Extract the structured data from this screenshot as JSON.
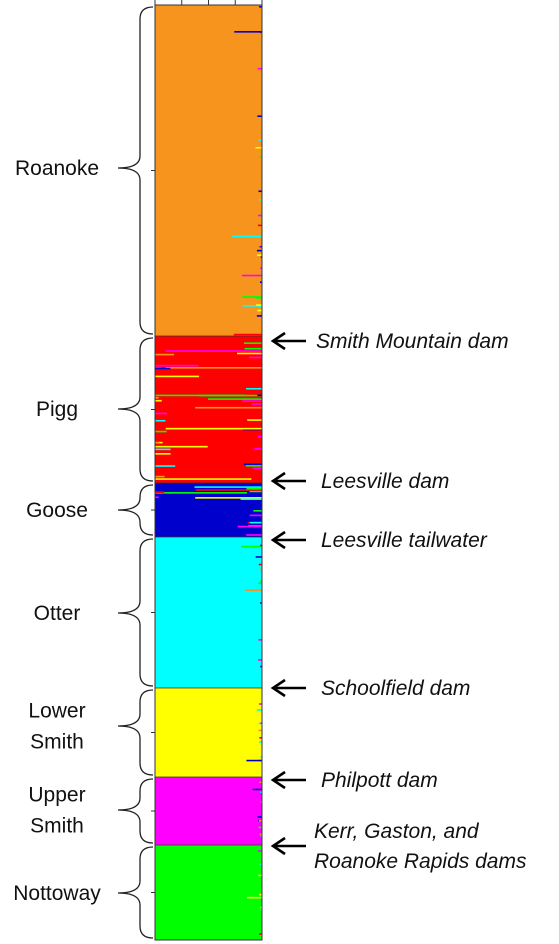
{
  "chart_data": {
    "type": "stacked-bar",
    "orientation": "horizontal",
    "title": "",
    "xlabel": "",
    "ylabel": "",
    "xlim": [
      0,
      1
    ],
    "cluster_colors": {
      "orange": "#F7941D",
      "red": "#FF0000",
      "blue": "#0000CC",
      "cyan": "#00FFFF",
      "yellow": "#FFFF00",
      "magenta": "#FF00FF",
      "green": "#00FF00"
    },
    "populations": [
      {
        "name": "Roanoke",
        "label_lines": [
          "Roanoke"
        ],
        "dominant": "orange",
        "dominant_fraction": 0.95
      },
      {
        "name": "Pigg",
        "label_lines": [
          "Pigg"
        ],
        "dominant": "red",
        "dominant_fraction": 0.85
      },
      {
        "name": "Goose",
        "label_lines": [
          "Goose"
        ],
        "dominant": "blue",
        "dominant_fraction": 0.88
      },
      {
        "name": "Otter",
        "label_lines": [
          "Otter"
        ],
        "dominant": "cyan",
        "dominant_fraction": 0.97
      },
      {
        "name": "Lower Smith",
        "label_lines": [
          "Lower",
          "Smith"
        ],
        "dominant": "yellow",
        "dominant_fraction": 0.97
      },
      {
        "name": "Upper Smith",
        "label_lines": [
          "Upper",
          "Smith"
        ],
        "dominant": "magenta",
        "dominant_fraction": 0.96
      },
      {
        "name": "Nottoway",
        "label_lines": [
          "Nottoway"
        ],
        "dominant": "green",
        "dominant_fraction": 0.97
      }
    ],
    "barriers": [
      {
        "label_lines": [
          "Smith Mountain dam"
        ]
      },
      {
        "label_lines": [
          "Leesville dam"
        ]
      },
      {
        "label_lines": [
          "Leesville tailwater"
        ]
      },
      {
        "label_lines": [
          "Schoolfield dam"
        ]
      },
      {
        "label_lines": [
          "Philpott dam"
        ]
      },
      {
        "label_lines": [
          "Kerr, Gaston, and",
          "Roanoke Rapids dams"
        ]
      }
    ]
  }
}
